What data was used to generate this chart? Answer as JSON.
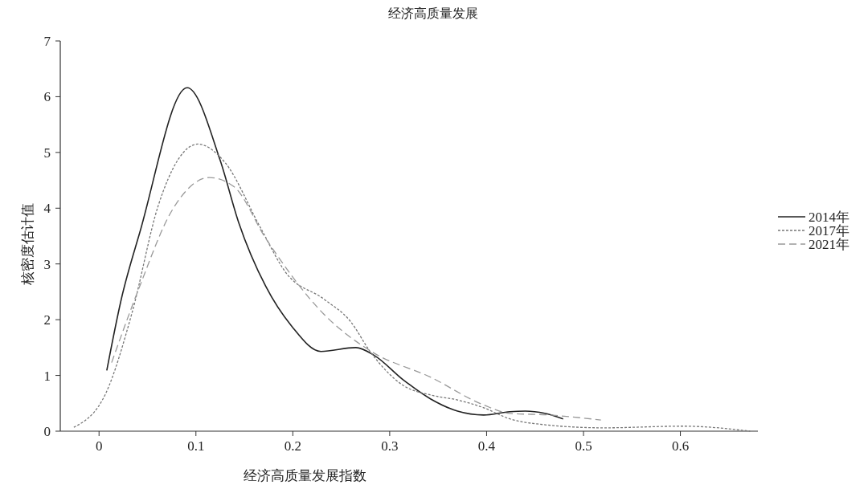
{
  "chart_data": {
    "type": "line",
    "title": "经济高质量发展",
    "xlabel": "经济高质量发展指数",
    "ylabel": "核密度估计值",
    "xlim": [
      -0.04,
      0.68
    ],
    "xticks": [
      0,
      0.1,
      0.2,
      0.3,
      0.4,
      0.5,
      0.6
    ],
    "ylim": [
      0,
      7
    ],
    "yticks": [
      0,
      1,
      2,
      3,
      4,
      5,
      6,
      7
    ],
    "grid": false,
    "legend": "right",
    "marker": "none",
    "series": [
      {
        "name": "2014年",
        "color": "#222222",
        "line_style": "solid",
        "x": [
          0.008,
          0.023,
          0.042,
          0.091,
          0.125,
          0.144,
          0.172,
          0.199,
          0.229,
          0.265,
          0.284,
          0.314,
          0.342,
          0.37,
          0.397,
          0.424,
          0.44,
          0.46,
          0.479
        ],
        "values": [
          1.09,
          2.37,
          3.56,
          6.16,
          4.86,
          3.75,
          2.6,
          1.88,
          1.43,
          1.5,
          1.36,
          0.92,
          0.58,
          0.36,
          0.29,
          0.35,
          0.36,
          0.32,
          0.22
        ]
      },
      {
        "name": "2017年",
        "color": "#777777",
        "line_style": "dotted",
        "x": [
          -0.026,
          0.007,
          0.034,
          0.061,
          0.102,
          0.13,
          0.166,
          0.193,
          0.232,
          0.259,
          0.281,
          0.314,
          0.342,
          0.37,
          0.397,
          0.424,
          0.452,
          0.521,
          0.603,
          0.672
        ],
        "values": [
          0.07,
          0.68,
          2.12,
          4.04,
          5.15,
          4.82,
          3.67,
          2.84,
          2.37,
          1.98,
          1.4,
          0.82,
          0.65,
          0.56,
          0.42,
          0.22,
          0.13,
          0.06,
          0.09,
          0
        ]
      },
      {
        "name": "2021年",
        "color": "#999999",
        "line_style": "dashed",
        "x": [
          0.013,
          0.042,
          0.075,
          0.114,
          0.139,
          0.172,
          0.232,
          0.281,
          0.342,
          0.397,
          0.424,
          0.465,
          0.518
        ],
        "values": [
          1.23,
          2.6,
          3.95,
          4.55,
          4.39,
          3.46,
          2.1,
          1.43,
          0.97,
          0.47,
          0.32,
          0.29,
          0.2
        ]
      }
    ]
  }
}
